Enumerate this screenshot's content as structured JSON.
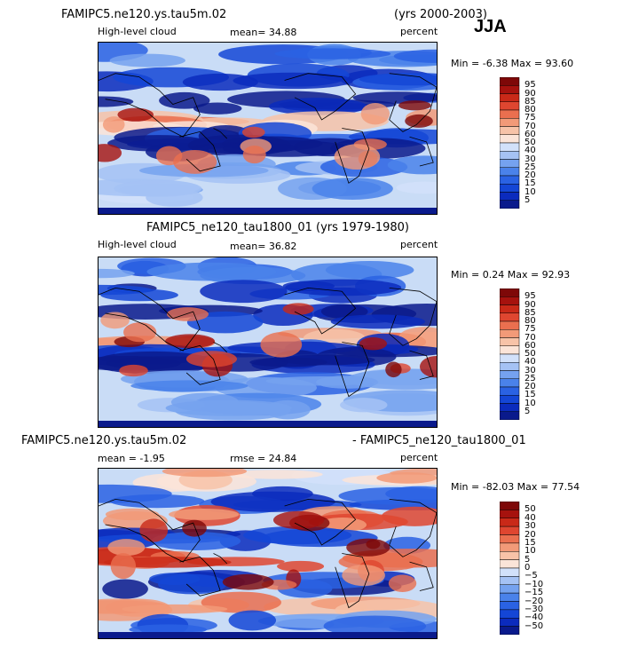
{
  "season": "JJA",
  "panels": [
    {
      "title_left": "FAMIPC5.ne120.ys.tau5m.02",
      "title_right": "(yrs 2000-2003)",
      "variable": "High-level cloud",
      "stat": "mean=  34.88",
      "units": "percent",
      "minmax": "Min =  -6.38 Max =  93.60",
      "colorbar_labels": [
        "95",
        "90",
        "85",
        "80",
        "75",
        "70",
        "60",
        "50",
        "40",
        "30",
        "25",
        "20",
        "15",
        "10",
        "5"
      ]
    },
    {
      "title": "FAMIPC5_ne120_tau1800_01 (yrs 1979-1980)",
      "variable": "High-level cloud",
      "stat": "mean=  36.82",
      "units": "percent",
      "minmax": "Min =   0.24 Max =  92.93",
      "colorbar_labels": [
        "95",
        "90",
        "85",
        "80",
        "75",
        "70",
        "60",
        "50",
        "40",
        "30",
        "25",
        "20",
        "15",
        "10",
        "5"
      ]
    },
    {
      "title_left": "FAMIPC5.ne120.ys.tau5m.02",
      "title_right": "- FAMIPC5_ne120_tau1800_01",
      "mean": "mean =  -1.95",
      "rmse": "rmse =  24.84",
      "units": "percent",
      "minmax": "Min = -82.03 Max =  77.54",
      "colorbar_labels": [
        "50",
        "40",
        "30",
        "20",
        "15",
        "10",
        "5",
        "0",
        "−5",
        "−10",
        "−15",
        "−20",
        "−30",
        "−40",
        "−50"
      ]
    }
  ],
  "colors": {
    "palette": [
      "#0a1a8c",
      "#0b2bbd",
      "#1446d6",
      "#2a62e3",
      "#4a82ea",
      "#75a2ef",
      "#a5c2f4",
      "#d2e1fa",
      "#fbe4d8",
      "#f7c3a8",
      "#f29a78",
      "#ea6f4f",
      "#df4630",
      "#c92918",
      "#a6120e",
      "#7e0808"
    ],
    "ocean": "#c9dcf6",
    "land_outline": "#000000"
  }
}
